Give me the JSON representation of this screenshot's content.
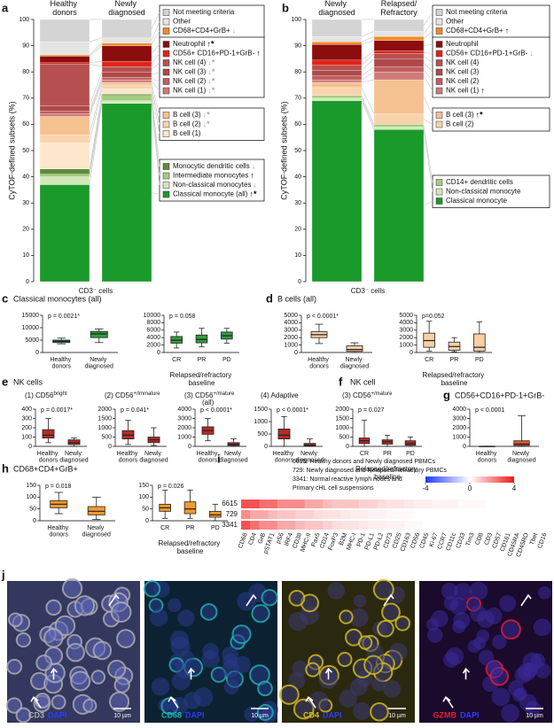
{
  "chart_data": [
    {
      "panel": "a",
      "type": "stacked",
      "ylabel": "CyTOF-defined subsets (%)",
      "xlabel": "CD3⁻ cells",
      "categories": [
        "Healthy donors",
        "Newly diagnosed"
      ],
      "ylim": [
        0,
        100
      ],
      "yticks": [
        0,
        10,
        20,
        30,
        40,
        50,
        60,
        70,
        80,
        90,
        100
      ],
      "series": [
        {
          "name": "Classical monocyte (all)",
          "color": "#1a9a2a",
          "values": [
            37,
            68
          ],
          "change": "↑*",
          "change_color": "#000000"
        },
        {
          "name": "Non-classical monocytes",
          "color": "#d3e8b8",
          "values": [
            3,
            1
          ],
          "change": "↓",
          "change_color": "#aaaaaa"
        },
        {
          "name": "Intermediate monocytes",
          "color": "#a3cc80",
          "values": [
            1,
            2
          ],
          "change": "↑",
          "change_color": "#000000"
        },
        {
          "name": "Monocytic dendritic cells",
          "color": "#5e8c3c",
          "values": [
            2,
            0.5
          ],
          "change": "↓",
          "change_color": "#aaaaaa"
        },
        {
          "name": "B cell (1)",
          "color": "#fde6cc",
          "values": [
            10,
            2
          ]
        },
        {
          "name": "B cell (2)",
          "color": "#f9d4ab",
          "values": [
            3,
            1.5
          ],
          "change": "↓*",
          "change_color": "#aaaaaa"
        },
        {
          "name": "B cell (3)",
          "color": "#f5c190",
          "values": [
            7,
            1
          ],
          "change": "↓*",
          "change_color": "#aaaaaa"
        },
        {
          "name": "NK cell (1)",
          "color": "#cf7b7b",
          "values": [
            1,
            1
          ],
          "change": "↓*",
          "change_color": "#aaaaaa"
        },
        {
          "name": "NK cell (2)",
          "color": "#bf5e5e",
          "values": [
            1,
            1
          ],
          "change": "↓*",
          "change_color": "#aaaaaa"
        },
        {
          "name": "NK cell (3)",
          "color": "#b04848",
          "values": [
            2,
            2
          ],
          "change": "↓*",
          "change_color": "#aaaaaa"
        },
        {
          "name": "NK cell (4)",
          "color": "#b65050",
          "values": [
            16,
            2
          ],
          "change": "↓*",
          "change_color": "#aaaaaa"
        },
        {
          "name": "CD56+ CD16+PD-1+GrB-",
          "color": "#e2231a",
          "values": [
            0.5,
            2
          ],
          "change": "↑",
          "change_color": "#000000"
        },
        {
          "name": "Neutrophil",
          "color": "#8b0d0d",
          "values": [
            2.5,
            6
          ],
          "change": "↑*",
          "change_color": "#000000"
        },
        {
          "name": "CD68+CD4+GrB+",
          "color": "#f08a24",
          "values": [
            0.5,
            1
          ],
          "change": "↓",
          "change_color": "#aaaaaa"
        },
        {
          "name": "Other",
          "color": "#e4e4e4",
          "values": [
            5,
            2
          ]
        },
        {
          "name": "Not meeting criteria",
          "color": "#d4d4d4",
          "values": [
            8.5,
            7
          ]
        }
      ]
    },
    {
      "panel": "b",
      "type": "stacked",
      "ylabel": "CyTOF-defined subsets (%)",
      "xlabel": "CD3⁻ cells",
      "categories": [
        "Newly diagnosed",
        "Relapsed/Refractory"
      ],
      "ylim": [
        0,
        100
      ],
      "yticks": [
        0,
        10,
        20,
        30,
        40,
        50,
        60,
        70,
        80,
        90,
        100
      ],
      "series": [
        {
          "name": "Classical monocyte",
          "color": "#1a9a2a",
          "values": [
            69,
            58
          ]
        },
        {
          "name": "Non-classical monocyte",
          "color": "#d3e8b8",
          "values": [
            1,
            1
          ]
        },
        {
          "name": "CD14+ dendritic cells",
          "color": "#a3cc80",
          "values": [
            1,
            1
          ]
        },
        {
          "name": "B cell (2)",
          "color": "#f9d4ab",
          "values": [
            3,
            4
          ]
        },
        {
          "name": "B cell (3)",
          "color": "#f5c190",
          "values": [
            2,
            13
          ],
          "change": "↑*",
          "change_color": "#000000"
        },
        {
          "name": "NK cell (1)",
          "color": "#cf7b7b",
          "values": [
            1,
            3
          ],
          "change": "↑",
          "change_color": "#000000"
        },
        {
          "name": "NK cell (2)",
          "color": "#bf5e5e",
          "values": [
            1.5,
            2
          ]
        },
        {
          "name": "NK cell (3)",
          "color": "#b04848",
          "values": [
            2,
            3
          ]
        },
        {
          "name": "NK cell (4)",
          "color": "#b65050",
          "values": [
            2,
            2
          ]
        },
        {
          "name": "CD56+ CD16+PD-1+GrB-",
          "color": "#e2231a",
          "values": [
            2,
            1
          ],
          "change": "↓",
          "change_color": "#aaaaaa"
        },
        {
          "name": "Neutrophil",
          "color": "#8b0d0d",
          "values": [
            6,
            4
          ]
        },
        {
          "name": "CD68+CD4+GrB+",
          "color": "#f08a24",
          "values": [
            1,
            1.5
          ],
          "change": "↑",
          "change_color": "#000000"
        },
        {
          "name": "Other",
          "color": "#e4e4e4",
          "values": [
            2,
            2
          ]
        },
        {
          "name": "Not meeting criteria",
          "color": "#d4d4d4",
          "values": [
            6.5,
            4.5
          ]
        }
      ]
    },
    {
      "panel": "c",
      "heading": "Classical monocytes (all)",
      "type": "box",
      "p_value": "p = 0.0021*",
      "color": "#2e9e3e",
      "categories": [
        "Healthy donors",
        "Newly diagnosed"
      ],
      "ylim": [
        0,
        15000
      ],
      "yticks": [
        0,
        5000,
        10000,
        15000
      ],
      "boxes": [
        {
          "min": 3500,
          "q1": 4000,
          "median": 4500,
          "q3": 5000,
          "max": 5800
        },
        {
          "min": 4000,
          "q1": 6000,
          "median": 7500,
          "q3": 8500,
          "max": 9500
        }
      ]
    },
    {
      "type": "box",
      "p_value": "p = 0.058",
      "color": "#2e9e3e",
      "group_label": "Relapsed/refractory baseline",
      "categories": [
        "CR",
        "PR",
        "PD"
      ],
      "ylim": [
        0,
        10000
      ],
      "yticks": [
        0,
        2000,
        4000,
        6000,
        8000,
        10000
      ],
      "boxes": [
        {
          "min": 1200,
          "q1": 2500,
          "median": 3300,
          "q3": 4300,
          "max": 5500
        },
        {
          "min": 1500,
          "q1": 2600,
          "median": 3500,
          "q3": 4700,
          "max": 6500
        },
        {
          "min": 2500,
          "q1": 3600,
          "median": 4500,
          "q3": 5500,
          "max": 6500
        }
      ]
    },
    {
      "panel": "d",
      "heading": "B cells (all)",
      "type": "box",
      "p_value": "p < 0.0001*",
      "color": "#f8d0a4",
      "categories": [
        "Healthy donors",
        "Newly diagnosed"
      ],
      "ylim": [
        0,
        5000
      ],
      "yticks": [
        0,
        1000,
        2000,
        3000,
        4000,
        5000
      ],
      "boxes": [
        {
          "min": 1200,
          "q1": 2000,
          "median": 2400,
          "q3": 2800,
          "max": 3800
        },
        {
          "min": 0,
          "q1": 150,
          "median": 400,
          "q3": 900,
          "max": 1300
        }
      ]
    },
    {
      "type": "box",
      "p_value": "p=0.052",
      "color": "#f8d0a4",
      "group_label": "Relapsed/refractory baseline",
      "categories": [
        "CR",
        "PR",
        "PD"
      ],
      "ylim": [
        0,
        5000
      ],
      "yticks": [
        0,
        1000,
        2000,
        3000,
        4000,
        5000
      ],
      "boxes": [
        {
          "min": 200,
          "q1": 700,
          "median": 1600,
          "q3": 2600,
          "max": 4200
        },
        {
          "min": 100,
          "q1": 300,
          "median": 800,
          "q3": 1400,
          "max": 2000
        },
        {
          "min": 0,
          "q1": 200,
          "median": 700,
          "q3": 2500,
          "max": 4100
        }
      ]
    },
    {
      "panel": "e",
      "heading": "NK cells",
      "title": "(1) CD56",
      "title_sup": "bright",
      "type": "box",
      "p_value": "p = 0.0017*",
      "color": "#b52b27",
      "categories": [
        "Healthy donors",
        "Newly diagnosed"
      ],
      "ylim": [
        0,
        400
      ],
      "yticks": [
        0,
        100,
        200,
        300,
        400
      ],
      "boxes": [
        {
          "min": 40,
          "q1": 90,
          "median": 120,
          "q3": 180,
          "max": 300
        },
        {
          "min": 0,
          "q1": 20,
          "median": 40,
          "q3": 70,
          "max": 90
        }
      ]
    },
    {
      "title": "(2) CD56",
      "title_sup": "+/immature",
      "type": "box",
      "p_value": "p = 0.041*",
      "color": "#b52b27",
      "categories": [
        "Healthy donors",
        "Newly diagnosed"
      ],
      "ylim": [
        0,
        2000
      ],
      "yticks": [
        0,
        500,
        1000,
        1500,
        2000
      ],
      "boxes": [
        {
          "min": 100,
          "q1": 400,
          "median": 600,
          "q3": 850,
          "max": 1400
        },
        {
          "min": 50,
          "q1": 200,
          "median": 350,
          "q3": 500,
          "max": 1000
        }
      ]
    },
    {
      "title": "(3) CD56",
      "title_sup": "+/mature",
      "title_line2": "(all)",
      "type": "box",
      "p_value": "p < 0.0001*",
      "color": "#b52b27",
      "categories": [
        "Healthy donors",
        "Newly diagnosed"
      ],
      "ylim": [
        0,
        4000
      ],
      "yticks": [
        0,
        1000,
        2000,
        3000,
        4000
      ],
      "boxes": [
        {
          "min": 600,
          "q1": 1300,
          "median": 1700,
          "q3": 2100,
          "max": 3000
        },
        {
          "min": 0,
          "q1": 100,
          "median": 200,
          "q3": 400,
          "max": 800
        }
      ]
    },
    {
      "title": "(4) Adaptive",
      "type": "box",
      "p_value": "p < 0.0001*",
      "color": "#b52b27",
      "categories": [
        "Healthy donors",
        "Newly diagnosed"
      ],
      "ylim": [
        0,
        1500
      ],
      "yticks": [
        0,
        500,
        1000,
        1500
      ],
      "boxes": [
        {
          "min": 0,
          "q1": 300,
          "median": 450,
          "q3": 700,
          "max": 1200
        },
        {
          "min": 0,
          "q1": 20,
          "median": 50,
          "q3": 120,
          "max": 300
        }
      ]
    },
    {
      "panel": "f",
      "heading": "NK cell",
      "title": "(3) CD56",
      "title_sup": "+/mature",
      "type": "box",
      "p_value": "p = 0.027",
      "color": "#b52b27",
      "group_label": "Relapsed/refractory baseline",
      "categories": [
        "CR",
        "PR",
        "PD"
      ],
      "ylim": [
        0,
        2000
      ],
      "yticks": [
        0,
        500,
        1000,
        1500,
        2000
      ],
      "boxes": [
        {
          "min": 0,
          "q1": 150,
          "median": 300,
          "q3": 450,
          "max": 1400
        },
        {
          "min": 0,
          "q1": 120,
          "median": 250,
          "q3": 350,
          "max": 600
        },
        {
          "min": 0,
          "q1": 60,
          "median": 150,
          "q3": 300,
          "max": 500
        }
      ]
    },
    {
      "panel": "g",
      "heading": "CD56+CD16+PD-1+GrB-",
      "type": "box",
      "p_value": "p < 0.0001",
      "color": "#f0582a",
      "categories": [
        "Healthy donors",
        "Newly diagnosed"
      ],
      "ylim": [
        0,
        4000
      ],
      "yticks": [
        0,
        1000,
        2000,
        3000,
        4000
      ],
      "boxes": [
        {
          "min": 0,
          "q1": 0,
          "median": 2,
          "q3": 5,
          "max": 15
        },
        {
          "min": 0,
          "q1": 100,
          "median": 250,
          "q3": 600,
          "max": 3300
        }
      ]
    },
    {
      "panel": "h",
      "heading": "CD68+CD4+GrB+",
      "type": "box",
      "p_value": "p = 0.018",
      "color": "#f39a2e",
      "categories": [
        "Healthy donors",
        "Newly diagnosed"
      ],
      "ylim": [
        0,
        150
      ],
      "yticks": [
        0,
        50,
        100,
        150
      ],
      "boxes": [
        {
          "min": 30,
          "q1": 55,
          "median": 70,
          "q3": 85,
          "max": 120
        },
        {
          "min": 5,
          "q1": 25,
          "median": 40,
          "q3": 60,
          "max": 100
        }
      ]
    },
    {
      "type": "box",
      "p_value": "p = 0.026",
      "color": "#f39a2e",
      "group_label": "Relapsed/refractory baseline",
      "categories": [
        "CR",
        "PR",
        "PD"
      ],
      "ylim": [
        0,
        150
      ],
      "yticks": [
        0,
        50,
        100,
        150
      ],
      "boxes": [
        {
          "min": 10,
          "q1": 40,
          "median": 55,
          "q3": 70,
          "max": 130
        },
        {
          "min": 10,
          "q1": 30,
          "median": 50,
          "q3": 80,
          "max": 130
        },
        {
          "min": 0,
          "q1": 15,
          "median": 25,
          "q3": 40,
          "max": 70
        }
      ]
    },
    {
      "panel": "i",
      "type": "heatmap",
      "legend_lines": [
        "6615: Healthy donors and Newly diagnosed PBMCs",
        "729: Newly diagnosed and Relapsed/Refractory PBMCs",
        "3341: Normal reactive lymph nodes and",
        "Primary cHL cell suspensions"
      ],
      "rows": [
        "6615",
        "729",
        "3341"
      ],
      "columns": [
        "CD68",
        "CD4",
        "GrB",
        "pSTAT1",
        "pS6",
        "IRF4",
        "CD38",
        "MHC-II",
        "Pax5",
        "CD14",
        "FoxP3",
        "B2M",
        "MHC-I",
        "PD-1",
        "PD-L1",
        "PD-L2",
        "CD73",
        "CD25",
        "CD163",
        "CD56",
        "CD45",
        "Ki-67",
        "CCR7",
        "CD11c",
        "CD33",
        "Tim3",
        "CD8",
        "CD3",
        "CD57",
        "CD161",
        "CD45RA",
        "CD45RO",
        "Tbet",
        "CD16"
      ],
      "values": [
        [
          3,
          3,
          2.5,
          2.5,
          2,
          2,
          2,
          1.5,
          1.5,
          1.2,
          1,
          1,
          1,
          0.8,
          0.8,
          0.6,
          0.5,
          0.5,
          0.4,
          0.3,
          0.3,
          0.2,
          0.2,
          0.2,
          0.1,
          0.1,
          0.1,
          0,
          0,
          0,
          0,
          0,
          0,
          0
        ],
        [
          2,
          1.5,
          1.5,
          1.2,
          1,
          1,
          0.8,
          0.8,
          0.6,
          0.5,
          0.5,
          0.4,
          0.3,
          0.3,
          0.2,
          0.2,
          0.1,
          0.1,
          0.1,
          0,
          0,
          0,
          0,
          0,
          0,
          0,
          0,
          0,
          0,
          0,
          0,
          0,
          0,
          0
        ],
        [
          3,
          2.5,
          2,
          2,
          1.5,
          1.5,
          1.2,
          1,
          1,
          0.8,
          0.6,
          0.5,
          0.5,
          0.4,
          0.3,
          0.3,
          0.2,
          0.2,
          0.1,
          0.1,
          0,
          0,
          0,
          0,
          0,
          0,
          0,
          0,
          0,
          0,
          0,
          0,
          0,
          0
        ]
      ],
      "zlim": [
        -4,
        4
      ],
      "zticks": [
        -4,
        0,
        4
      ],
      "colors": [
        "#1f3cff",
        "#ffffff",
        "#f01818"
      ]
    }
  ],
  "images": {
    "panel": "j",
    "items": [
      {
        "marker": "CD3",
        "color": "#b0b0b0",
        "counterstain": "DAPI",
        "scale": "10 µm"
      },
      {
        "marker": "CD68",
        "color": "#1fb5b5",
        "counterstain": "DAPI",
        "scale": "10 µm"
      },
      {
        "marker": "CD4",
        "color": "#d8c21a",
        "counterstain": "DAPI",
        "scale": "10 µm"
      },
      {
        "marker": "GZMB",
        "color": "#ee1c2e",
        "counterstain": "DAPI",
        "scale": "10 µm"
      }
    ],
    "counterstain_color": "#2a3cff"
  }
}
